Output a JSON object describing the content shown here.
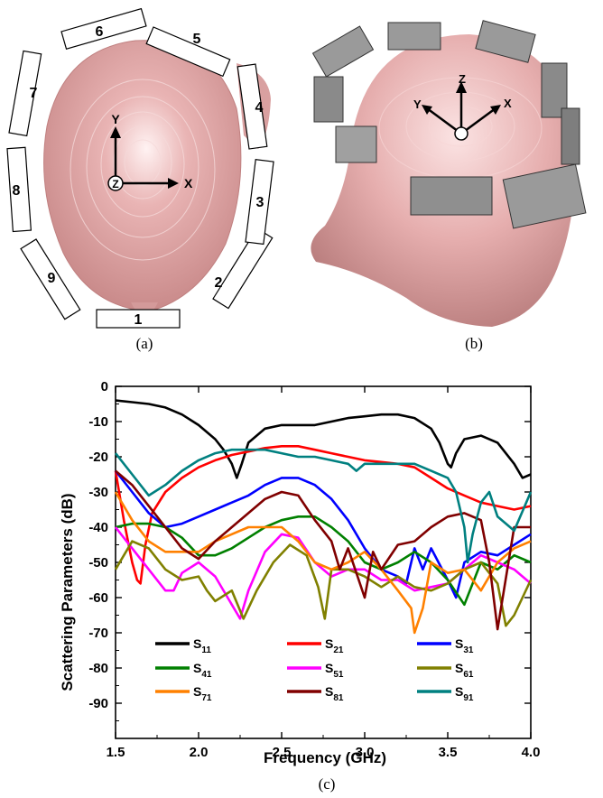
{
  "panel_a": {
    "caption": "(a)",
    "elements": [
      "1",
      "2",
      "3",
      "4",
      "5",
      "6",
      "7",
      "8",
      "9"
    ],
    "axes": {
      "y": "Y",
      "x": "X",
      "z": "Z"
    }
  },
  "panel_b": {
    "caption": "(b)",
    "axes": {
      "z": "Z",
      "y": "Y",
      "x": "X"
    }
  },
  "panel_c": {
    "caption": "(c)"
  },
  "chart_data": {
    "type": "line",
    "xlabel": "Frequency (GHz)",
    "ylabel": "Scattering Parameters (dB)",
    "xlim": [
      1.5,
      4.0
    ],
    "ylim": [
      -100,
      0
    ],
    "xticks": [
      "1.5",
      "2.0",
      "2.5",
      "3.0",
      "3.5",
      "4.0"
    ],
    "yticks": [
      "0",
      "-10",
      "-20",
      "-30",
      "-40",
      "-50",
      "-60",
      "-70",
      "-80",
      "-90"
    ],
    "grid": false,
    "legend_placement": "bottom",
    "series": [
      {
        "name": "S11",
        "base": "S",
        "sub": "11",
        "color": "#000000",
        "x": [
          1.5,
          1.6,
          1.7,
          1.8,
          1.9,
          2.0,
          2.1,
          2.15,
          2.2,
          2.23,
          2.26,
          2.3,
          2.4,
          2.5,
          2.6,
          2.7,
          2.8,
          2.9,
          3.0,
          3.1,
          3.2,
          3.3,
          3.4,
          3.45,
          3.5,
          3.52,
          3.55,
          3.6,
          3.7,
          3.8,
          3.9,
          3.95,
          4.0
        ],
        "y": [
          -4,
          -4.5,
          -5,
          -6,
          -8,
          -11,
          -15,
          -18,
          -22,
          -26,
          -22,
          -16,
          -12,
          -11,
          -11,
          -11,
          -10,
          -9,
          -8.5,
          -8,
          -8,
          -9,
          -12,
          -16,
          -22,
          -23,
          -19,
          -15,
          -14,
          -16,
          -22,
          -26,
          -25
        ]
      },
      {
        "name": "S21",
        "base": "S",
        "sub": "21",
        "color": "#ff0000",
        "x": [
          1.5,
          1.55,
          1.6,
          1.63,
          1.65,
          1.68,
          1.72,
          1.8,
          1.9,
          2.0,
          2.1,
          2.2,
          2.3,
          2.4,
          2.5,
          2.6,
          2.7,
          2.8,
          2.9,
          3.0,
          3.1,
          3.2,
          3.3,
          3.4,
          3.5,
          3.6,
          3.7,
          3.8,
          3.9,
          4.0
        ],
        "y": [
          -24,
          -38,
          -50,
          -55,
          -56,
          -45,
          -36,
          -30,
          -26,
          -23,
          -21,
          -19.5,
          -18.5,
          -17.5,
          -17,
          -17,
          -18,
          -19,
          -20,
          -21,
          -21.5,
          -22,
          -23,
          -26,
          -29,
          -31,
          -33,
          -34,
          -35,
          -34
        ]
      },
      {
        "name": "S31",
        "base": "S",
        "sub": "31",
        "color": "#0000ff",
        "x": [
          1.5,
          1.6,
          1.7,
          1.8,
          1.9,
          2.0,
          2.1,
          2.2,
          2.3,
          2.4,
          2.5,
          2.6,
          2.7,
          2.8,
          2.9,
          3.0,
          3.1,
          3.2,
          3.25,
          3.3,
          3.35,
          3.4,
          3.5,
          3.55,
          3.6,
          3.7,
          3.8,
          3.9,
          4.0
        ],
        "y": [
          -24,
          -30,
          -36,
          -40,
          -39,
          -37,
          -35,
          -33,
          -31,
          -28,
          -26,
          -26,
          -28,
          -32,
          -38,
          -46,
          -52,
          -54,
          -56,
          -46,
          -52,
          -46,
          -55,
          -60,
          -50,
          -47,
          -48,
          -45,
          -42
        ]
      },
      {
        "name": "S41",
        "base": "S",
        "sub": "41",
        "color": "#008000",
        "x": [
          1.5,
          1.6,
          1.7,
          1.8,
          1.9,
          2.0,
          2.1,
          2.2,
          2.3,
          2.4,
          2.5,
          2.6,
          2.7,
          2.8,
          2.9,
          3.0,
          3.1,
          3.2,
          3.3,
          3.4,
          3.5,
          3.6,
          3.7,
          3.8,
          3.9,
          4.0
        ],
        "y": [
          -40,
          -39,
          -39,
          -40,
          -43,
          -48,
          -48,
          -46,
          -43,
          -40,
          -38,
          -37,
          -37,
          -40,
          -44,
          -50,
          -52,
          -50,
          -47,
          -50,
          -55,
          -62,
          -50,
          -52,
          -48,
          -50
        ]
      },
      {
        "name": "S51",
        "base": "S",
        "sub": "51",
        "color": "#ff00ff",
        "x": [
          1.5,
          1.6,
          1.7,
          1.8,
          1.85,
          1.9,
          2.0,
          2.1,
          2.2,
          2.25,
          2.3,
          2.4,
          2.5,
          2.6,
          2.7,
          2.8,
          2.9,
          3.0,
          3.1,
          3.2,
          3.3,
          3.4,
          3.5,
          3.6,
          3.7,
          3.8,
          3.9,
          4.0
        ],
        "y": [
          -40,
          -46,
          -52,
          -58,
          -58,
          -53,
          -50,
          -54,
          -62,
          -66,
          -58,
          -47,
          -42,
          -43,
          -50,
          -54,
          -52,
          -52,
          -55,
          -55,
          -58,
          -57,
          -56,
          -52,
          -48,
          -50,
          -52,
          -56
        ]
      },
      {
        "name": "S61",
        "base": "S",
        "sub": "61",
        "color": "#808000",
        "x": [
          1.5,
          1.6,
          1.7,
          1.8,
          1.9,
          2.0,
          2.05,
          2.1,
          2.2,
          2.27,
          2.35,
          2.45,
          2.55,
          2.65,
          2.72,
          2.76,
          2.8,
          2.9,
          3.0,
          3.1,
          3.2,
          3.3,
          3.4,
          3.5,
          3.6,
          3.7,
          3.8,
          3.85,
          3.9,
          4.0
        ],
        "y": [
          -52,
          -44,
          -46,
          -52,
          -55,
          -54,
          -58,
          -61,
          -58,
          -66,
          -58,
          -50,
          -45,
          -48,
          -57,
          -66,
          -52,
          -52,
          -54,
          -57,
          -54,
          -57,
          -58,
          -56,
          -52,
          -50,
          -56,
          -68,
          -65,
          -55
        ]
      },
      {
        "name": "S71",
        "base": "S",
        "sub": "71",
        "color": "#ff8000",
        "x": [
          1.5,
          1.6,
          1.7,
          1.8,
          1.9,
          2.0,
          2.1,
          2.2,
          2.3,
          2.4,
          2.5,
          2.6,
          2.7,
          2.8,
          2.9,
          3.0,
          3.1,
          3.2,
          3.28,
          3.3,
          3.35,
          3.4,
          3.5,
          3.6,
          3.7,
          3.8,
          3.9,
          4.0
        ],
        "y": [
          -30,
          -38,
          -44,
          -47,
          -47,
          -47,
          -44,
          -42,
          -40,
          -40,
          -40,
          -44,
          -50,
          -52,
          -50,
          -47,
          -52,
          -58,
          -63,
          -70,
          -63,
          -50,
          -53,
          -52,
          -58,
          -50,
          -46,
          -44
        ]
      },
      {
        "name": "S81",
        "base": "S",
        "sub": "81",
        "color": "#800000",
        "x": [
          1.5,
          1.6,
          1.7,
          1.8,
          1.9,
          2.0,
          2.1,
          2.2,
          2.3,
          2.4,
          2.5,
          2.6,
          2.7,
          2.8,
          2.85,
          2.9,
          3.0,
          3.05,
          3.1,
          3.2,
          3.3,
          3.4,
          3.5,
          3.6,
          3.7,
          3.75,
          3.8,
          3.9,
          4.0
        ],
        "y": [
          -24,
          -28,
          -34,
          -40,
          -46,
          -49,
          -44,
          -40,
          -36,
          -32,
          -30,
          -31,
          -38,
          -44,
          -52,
          -46,
          -60,
          -47,
          -52,
          -45,
          -44,
          -40,
          -37,
          -36,
          -38,
          -50,
          -69,
          -40,
          -40
        ]
      },
      {
        "name": "S91",
        "base": "S",
        "sub": "91",
        "color": "#008080",
        "x": [
          1.5,
          1.6,
          1.7,
          1.8,
          1.9,
          2.0,
          2.1,
          2.2,
          2.3,
          2.4,
          2.5,
          2.6,
          2.7,
          2.8,
          2.9,
          2.95,
          3.0,
          3.1,
          3.2,
          3.3,
          3.4,
          3.5,
          3.55,
          3.6,
          3.62,
          3.65,
          3.7,
          3.75,
          3.8,
          3.9,
          4.0
        ],
        "y": [
          -19,
          -25,
          -31,
          -28,
          -24,
          -21,
          -19,
          -18,
          -18,
          -18,
          -19,
          -20,
          -20,
          -21,
          -22,
          -24,
          -22,
          -22,
          -22,
          -22,
          -24,
          -26,
          -30,
          -40,
          -50,
          -42,
          -33,
          -30,
          -37,
          -41,
          -30
        ]
      }
    ]
  }
}
